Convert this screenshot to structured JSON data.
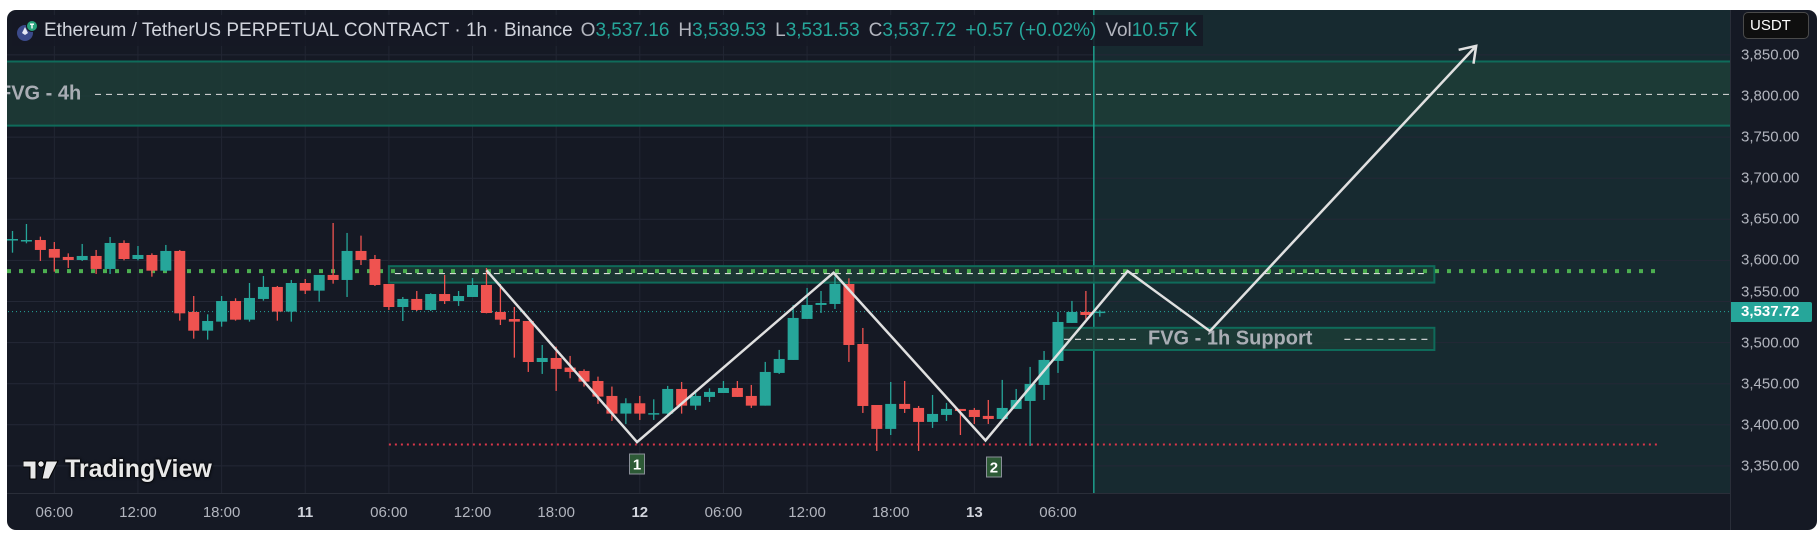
{
  "header": {
    "symbol_icon": "ethereum-tether-icon",
    "title": "Ethereum / TetherUS PERPETUAL CONTRACT · 1h · Binance",
    "o_label": "O",
    "o": "3,537.16",
    "h_label": "H",
    "h": "3,539.53",
    "l_label": "L",
    "l": "3,531.53",
    "c_label": "C",
    "c": "3,537.72",
    "change": "+0.57 (+0.02%)",
    "vol_label": "Vol",
    "vol": "10.57 K"
  },
  "currency": "USDT",
  "logo": "TradingView",
  "last_price": "3,537.72",
  "colors": {
    "up": "#26a69a",
    "down": "#ef5350",
    "background": "#151924",
    "future_zone": "#172a30",
    "fvg_fill": "#1d3d37",
    "fvg_border": "#0f6b5a",
    "level_green": "#4caf50",
    "level_red": "#d9364a",
    "drawing": "#e0e0e0"
  },
  "chart_data": {
    "type": "candlestick",
    "ylim": [
      3325,
      3865
    ],
    "grid": true,
    "price_ticks": [
      {
        "value": 3850,
        "label": "3,850.00"
      },
      {
        "value": 3800,
        "label": "3,800.00"
      },
      {
        "value": 3750,
        "label": "3,750.00"
      },
      {
        "value": 3700,
        "label": "3,700.00"
      },
      {
        "value": 3650,
        "label": "3,650.00"
      },
      {
        "value": 3600,
        "label": "3,600.00"
      },
      {
        "value": 3550,
        "label": "3,550.00"
      },
      {
        "value": 3500,
        "label": "3,500.00"
      },
      {
        "value": 3450,
        "label": "3,450.00"
      },
      {
        "value": 3400,
        "label": "3,400.00"
      },
      {
        "value": 3350,
        "label": "3,350.00"
      }
    ],
    "time_ticks": [
      {
        "bar": 3,
        "label": "06:00",
        "bold": false
      },
      {
        "bar": 9,
        "label": "12:00",
        "bold": false
      },
      {
        "bar": 15,
        "label": "18:00",
        "bold": false
      },
      {
        "bar": 21,
        "label": "11",
        "bold": true
      },
      {
        "bar": 27,
        "label": "06:00",
        "bold": false
      },
      {
        "bar": 33,
        "label": "12:00",
        "bold": false
      },
      {
        "bar": 39,
        "label": "18:00",
        "bold": false
      },
      {
        "bar": 45,
        "label": "12",
        "bold": true
      },
      {
        "bar": 51,
        "label": "06:00",
        "bold": false
      },
      {
        "bar": 57,
        "label": "12:00",
        "bold": false
      },
      {
        "bar": 63,
        "label": "18:00",
        "bold": false
      },
      {
        "bar": 69,
        "label": "13",
        "bold": true
      },
      {
        "bar": 75,
        "label": "06:00",
        "bold": false
      }
    ],
    "ohlc": [
      [
        3625.7,
        3635.8,
        3609.4,
        3626.0
      ],
      [
        3624.8,
        3644.3,
        3620.8,
        3624.8
      ],
      [
        3624.8,
        3628.9,
        3599.3,
        3612.7
      ],
      [
        3613.9,
        3622.4,
        3586.3,
        3603.3
      ],
      [
        3604.2,
        3608.6,
        3590.8,
        3600.5
      ],
      [
        3600.5,
        3620.0,
        3599.3,
        3605.4
      ],
      [
        3605.4,
        3612.7,
        3583.5,
        3589.6
      ],
      [
        3589.6,
        3628.5,
        3583.5,
        3621.2
      ],
      [
        3621.2,
        3624.4,
        3600.1,
        3601.7
      ],
      [
        3601.7,
        3617.5,
        3600.1,
        3606.6
      ],
      [
        3606.6,
        3608.6,
        3580.2,
        3587.5
      ],
      [
        3587.5,
        3618.8,
        3586.3,
        3611.5
      ],
      [
        3611.5,
        3612.7,
        3526.7,
        3535.6
      ],
      [
        3537.3,
        3556.7,
        3504.8,
        3514.5
      ],
      [
        3514.5,
        3534.4,
        3503.6,
        3526.3
      ],
      [
        3525.5,
        3556.7,
        3519.4,
        3550.6
      ],
      [
        3550.6,
        3553.9,
        3526.7,
        3527.9
      ],
      [
        3527.9,
        3572.5,
        3525.5,
        3554.3
      ],
      [
        3553.1,
        3581.0,
        3551.0,
        3567.7
      ],
      [
        3567.7,
        3568.9,
        3526.7,
        3537.7
      ],
      [
        3537.7,
        3576.2,
        3525.5,
        3572.5
      ],
      [
        3572.5,
        3577.4,
        3559.1,
        3563.2
      ],
      [
        3563.2,
        3582.3,
        3549.8,
        3582.3
      ],
      [
        3582.3,
        3645.5,
        3571.7,
        3576.2
      ],
      [
        3576.2,
        3633.4,
        3555.5,
        3611.5
      ],
      [
        3611.5,
        3630.1,
        3594.4,
        3600.5
      ],
      [
        3601.7,
        3606.6,
        3568.9,
        3570.1
      ],
      [
        3571.3,
        3571.3,
        3539.7,
        3543.3
      ],
      [
        3543.3,
        3555.5,
        3526.3,
        3553.1
      ],
      [
        3553.1,
        3562.8,
        3538.5,
        3539.7
      ],
      [
        3539.7,
        3560.0,
        3538.5,
        3559.1
      ],
      [
        3559.1,
        3582.3,
        3547.0,
        3550.6
      ],
      [
        3550.6,
        3562.8,
        3544.6,
        3556.7
      ],
      [
        3555.5,
        3578.6,
        3555.5,
        3570.1
      ],
      [
        3570.1,
        3590.8,
        3535.6,
        3536.0
      ],
      [
        3537.3,
        3571.3,
        3521.4,
        3527.9
      ],
      [
        3528.7,
        3543.3,
        3481.7,
        3525.5
      ],
      [
        3526.3,
        3526.3,
        3464.3,
        3476.4
      ],
      [
        3476.4,
        3497.1,
        3461.9,
        3481.3
      ],
      [
        3481.3,
        3495.1,
        3441.2,
        3468.0
      ],
      [
        3469.6,
        3483.8,
        3456.6,
        3464.3
      ],
      [
        3465.5,
        3467.5,
        3446.5,
        3452.5
      ],
      [
        3453.3,
        3458.6,
        3425.4,
        3434.3
      ],
      [
        3435.1,
        3446.5,
        3404.7,
        3413.6
      ],
      [
        3413.6,
        3432.3,
        3401.0,
        3426.2
      ],
      [
        3426.2,
        3435.1,
        3405.9,
        3413.6
      ],
      [
        3414.0,
        3431.0,
        3405.9,
        3414.2
      ],
      [
        3413.6,
        3447.3,
        3410.0,
        3443.6
      ],
      [
        3443.6,
        3452.1,
        3413.6,
        3423.3
      ],
      [
        3423.3,
        3442.4,
        3418.1,
        3435.1
      ],
      [
        3433.9,
        3444.4,
        3427.8,
        3440.0
      ],
      [
        3438.7,
        3453.3,
        3438.7,
        3444.8
      ],
      [
        3444.8,
        3453.3,
        3433.9,
        3433.9
      ],
      [
        3435.1,
        3448.5,
        3420.5,
        3423.3
      ],
      [
        3423.3,
        3476.5,
        3423.3,
        3464.3
      ],
      [
        3463.1,
        3491.1,
        3461.9,
        3480.1
      ],
      [
        3478.9,
        3545.8,
        3478.9,
        3530.0
      ],
      [
        3528.8,
        3566.5,
        3528.8,
        3545.8
      ],
      [
        3545.8,
        3562.8,
        3536.1,
        3548.2
      ],
      [
        3547.0,
        3580.3,
        3540.9,
        3571.3
      ],
      [
        3571.3,
        3578.2,
        3476.5,
        3497.1
      ],
      [
        3498.3,
        3517.8,
        3414.4,
        3422.9
      ],
      [
        3424.1,
        3424.1,
        3368.2,
        3395.0
      ],
      [
        3395.0,
        3452.1,
        3387.6,
        3425.4
      ],
      [
        3425.4,
        3453.3,
        3414.4,
        3419.3
      ],
      [
        3420.5,
        3422.9,
        3368.2,
        3403.5
      ],
      [
        3403.5,
        3436.3,
        3396.2,
        3413.2
      ],
      [
        3412.0,
        3426.6,
        3404.7,
        3419.3
      ],
      [
        3419.3,
        3419.3,
        3387.6,
        3416.8
      ],
      [
        3418.1,
        3420.5,
        3401.0,
        3409.5
      ],
      [
        3410.8,
        3430.2,
        3401.0,
        3407.1
      ],
      [
        3407.1,
        3454.6,
        3407.1,
        3420.5
      ],
      [
        3419.3,
        3443.6,
        3419.3,
        3430.2
      ],
      [
        3429.0,
        3470.4,
        3374.3,
        3449.7
      ],
      [
        3448.5,
        3489.8,
        3430.2,
        3478.9
      ],
      [
        3477.7,
        3537.3,
        3463.1,
        3525.1
      ],
      [
        3523.9,
        3550.7,
        3523.9,
        3537.3
      ],
      [
        3537.3,
        3562.8,
        3528.8,
        3533.6
      ],
      [
        3537.16,
        3539.53,
        3531.53,
        3537.72
      ]
    ],
    "annotations": {
      "fvg_4h": {
        "label": "FVG - 4h",
        "top": 3842,
        "bottom": 3764,
        "mid": 3802
      },
      "fvg_1h_resistance": {
        "top": 3593,
        "bottom": 3573,
        "mid": 3584,
        "from_bar": 27,
        "to_bar": 102
      },
      "fvg_1h_support": {
        "label": "FVG - 1h Support",
        "top": 3518,
        "bottom": 3491,
        "mid": 3504,
        "from_bar": 75,
        "to_bar": 102
      },
      "resistance_level": {
        "price": 3587,
        "to_bar": 118
      },
      "support_level": {
        "price": 3376,
        "from_bar": 27,
        "to_bar": 118
      },
      "zigzag": [
        [
          34,
          3588
        ],
        [
          44.8,
          3379
        ],
        [
          58.9,
          3585
        ],
        [
          69.8,
          3381
        ],
        [
          80,
          3587
        ],
        [
          85.9,
          3514
        ],
        [
          105,
          3861
        ]
      ],
      "markers": [
        {
          "label": "1",
          "bar": 44.8,
          "price": 3352
        },
        {
          "label": "2",
          "bar": 70.4,
          "price": 3349
        }
      ]
    }
  }
}
